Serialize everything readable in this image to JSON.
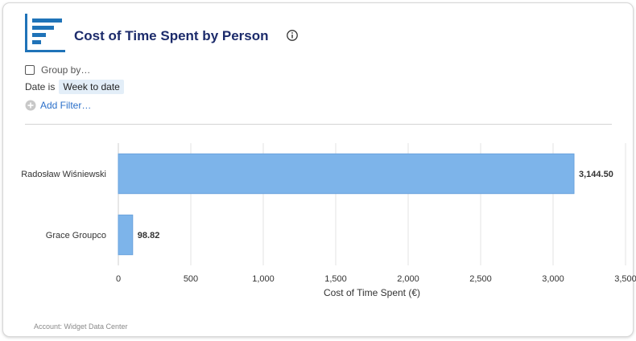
{
  "header": {
    "title": "Cost of Time Spent by Person"
  },
  "controls": {
    "group_by_label": "Group by…",
    "group_by_checked": false,
    "date_label": "Date is",
    "date_value": "Week to date",
    "add_filter_label": "Add Filter…"
  },
  "colors": {
    "bar": "#7db4ea",
    "bar_border": "#6aa3dd",
    "title": "#1c2b6b",
    "link": "#2a6fc9",
    "logo": "#1f73b8"
  },
  "icons": {
    "logo": "bar-chart-icon",
    "info": "info-icon",
    "add": "plus-circle-icon"
  },
  "chart_data": {
    "type": "bar",
    "orientation": "horizontal",
    "categories": [
      "Radosław Wiśniewski",
      "Grace Groupco"
    ],
    "values": [
      3144.5,
      98.82
    ],
    "value_labels": [
      "3,144.50",
      "98.82"
    ],
    "xlabel": "Cost of Time Spent (€)",
    "xlim": [
      0,
      3500
    ],
    "xticks": [
      0,
      500,
      1000,
      1500,
      2000,
      2500,
      3000,
      3500
    ],
    "xtick_labels": [
      "0",
      "500",
      "1,000",
      "1,500",
      "2,000",
      "2,500",
      "3,000",
      "3,500"
    ],
    "grid": true
  },
  "footer": {
    "account_text": "Account: Widget Data Center"
  }
}
